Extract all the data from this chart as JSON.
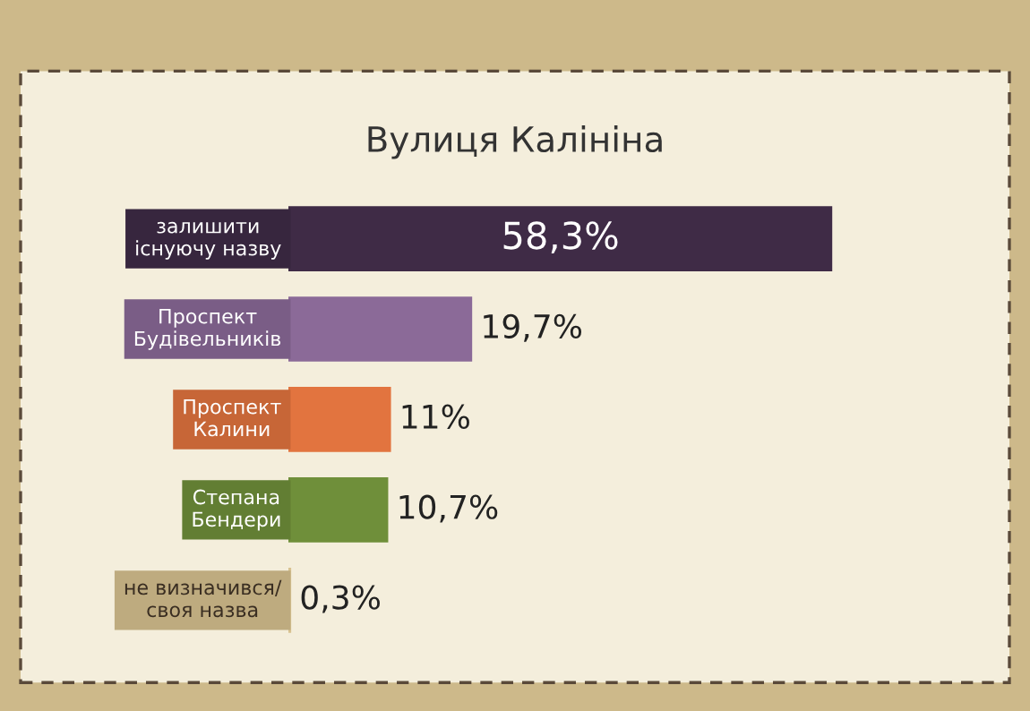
{
  "chart_data": {
    "type": "bar",
    "orientation": "horizontal",
    "title": "Вулиця Калініна",
    "categories": [
      "залишити\nіснуючу назву",
      "Проспект\nБудівельників",
      "Проспект\nКалини",
      "Степана\nБендери",
      "не визначився/\nсвоя назва"
    ],
    "values": [
      58.3,
      19.7,
      11,
      10.7,
      0.3
    ],
    "colors": [
      "#3f2b46",
      "#8b6a98",
      "#e2743f",
      "#6f8f3a",
      "#d8c290"
    ],
    "value_labels": [
      "58,3%",
      "19,7%",
      "11%",
      "10,7%",
      "0,3%"
    ],
    "data_labels": false
  }
}
